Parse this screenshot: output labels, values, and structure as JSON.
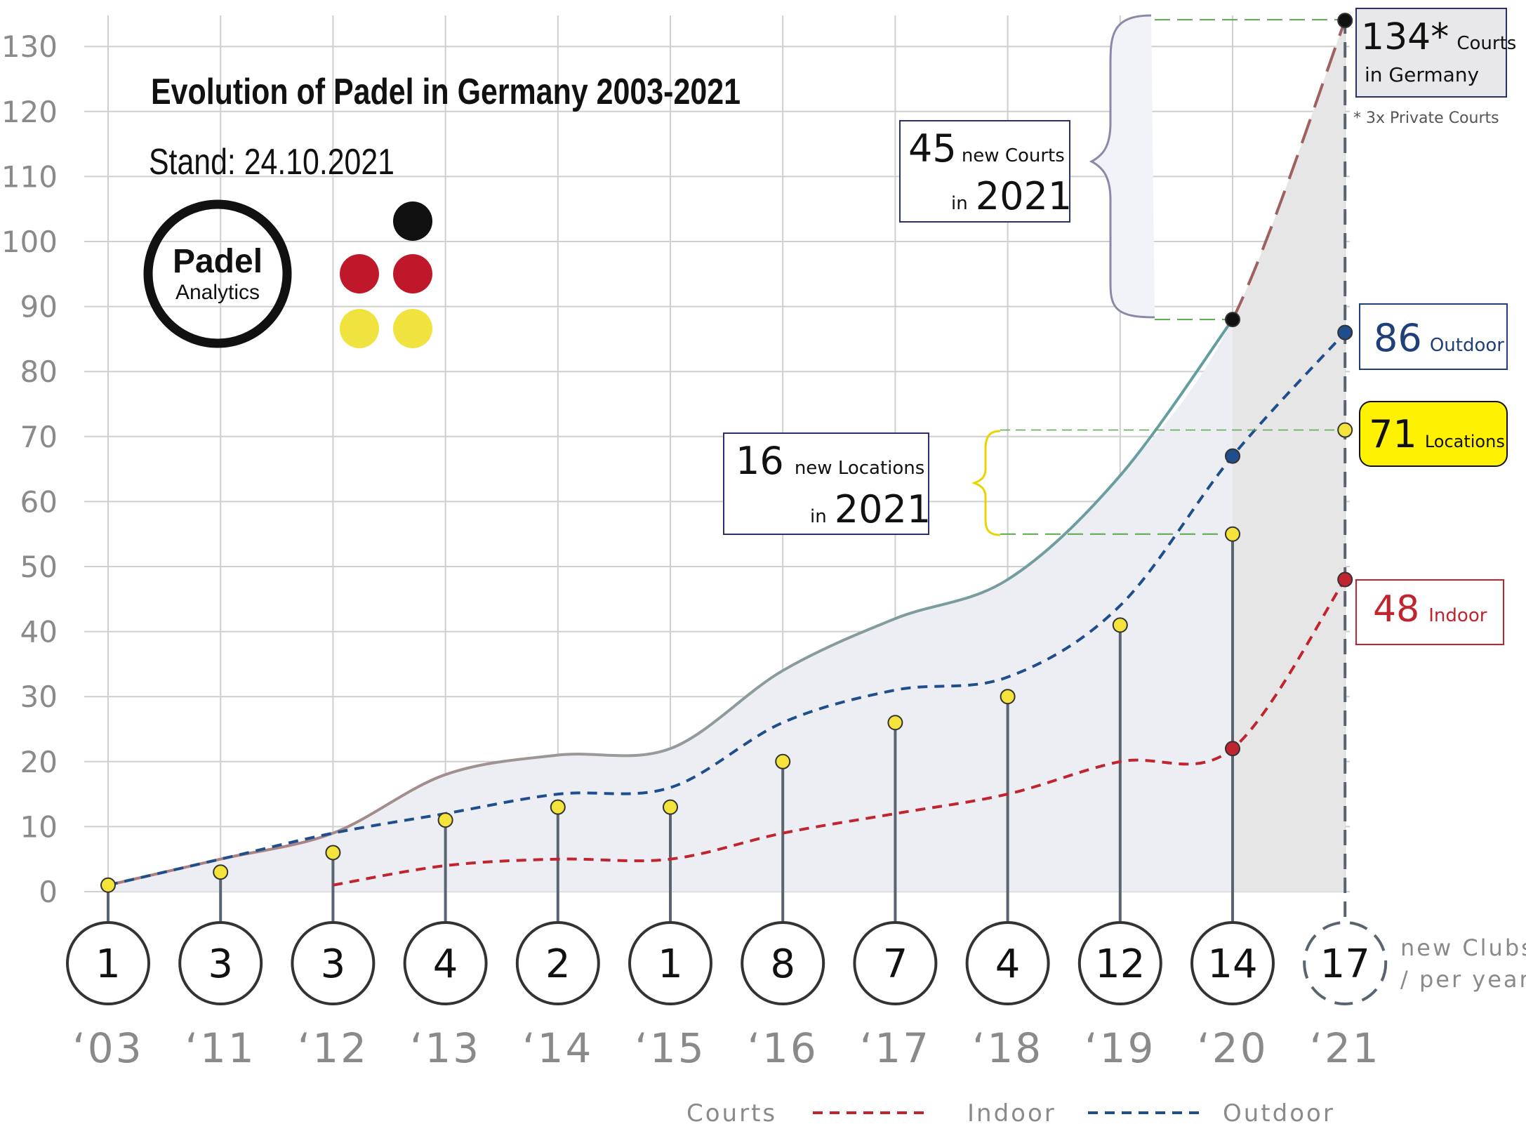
{
  "chart_data": {
    "type": "line",
    "title": "Evolution of Padel in Germany 2003-2021",
    "subtitle": "Stand: 24.10.2021",
    "categories": [
      "‘03",
      "‘11",
      "‘12",
      "‘13",
      "‘14",
      "‘15",
      "‘16",
      "‘17",
      "‘18",
      "‘19",
      "‘20",
      "‘21"
    ],
    "ylim": [
      0,
      134
    ],
    "yticks": [
      0,
      10,
      20,
      30,
      40,
      50,
      60,
      70,
      80,
      90,
      100,
      110,
      120,
      130
    ],
    "grid": true,
    "legend_position": "bottom",
    "series": [
      {
        "name": "Courts",
        "style": "solid",
        "color": "#b07a7a",
        "color_end": "#5f9ea0",
        "values": [
          1,
          5,
          9,
          18,
          21,
          22,
          34,
          42,
          48,
          64,
          88,
          134
        ]
      },
      {
        "name": "Indoor",
        "style": "dashed",
        "color": "#c0242e",
        "values": [
          null,
          null,
          1,
          4,
          5,
          5,
          9,
          12,
          15,
          20,
          22,
          48
        ]
      },
      {
        "name": "Outdoor",
        "style": "dashed",
        "color": "#1f4e8c",
        "values": [
          1,
          5,
          9,
          12,
          15,
          16,
          26,
          31,
          33,
          44,
          67,
          86
        ]
      },
      {
        "name": "Locations",
        "style": "lollipop",
        "color": "#f3e33a",
        "values": [
          1,
          3,
          6,
          11,
          13,
          13,
          20,
          26,
          30,
          41,
          55,
          71
        ]
      }
    ],
    "new_clubs_per_year": [
      "1",
      "3",
      "3",
      "4",
      "2",
      "1",
      "8",
      "7",
      "4",
      "12",
      "14",
      "17"
    ],
    "new_clubs_label_1": "new Clubs",
    "new_clubs_label_2": "/ per year",
    "annotations": {
      "courts_total_num": "134*",
      "courts_total_1": "Courts",
      "courts_total_2": "in Germany",
      "courts_footnote": "* 3x Private Courts",
      "outdoor_num": "86",
      "outdoor_label": "Outdoor",
      "locations_num": "71",
      "locations_label": "Locations",
      "indoor_num": "48",
      "indoor_label": "Indoor",
      "new_courts_num": "45",
      "new_courts_label": "new Courts",
      "new_courts_in": "in",
      "new_courts_year": "2021",
      "new_locations_num": "16",
      "new_locations_label": "new Locations",
      "new_locations_in": "in",
      "new_locations_year": "2021"
    },
    "logo": {
      "line1": "Padel",
      "line2": "Analytics",
      "dot_colors": [
        "#111111",
        "#c0182b",
        "#c0182b",
        "#f0e340",
        "#f0e340"
      ]
    },
    "colors": {
      "grid": "#cfcfcf",
      "area_fill": "#eceef4",
      "area_fill_last": "#e6e6e6",
      "stem": "#5a6470",
      "new_courts_brace": "#8a8aa8",
      "new_locations_brace": "#e8d400",
      "guide": "#5aa84a"
    }
  }
}
